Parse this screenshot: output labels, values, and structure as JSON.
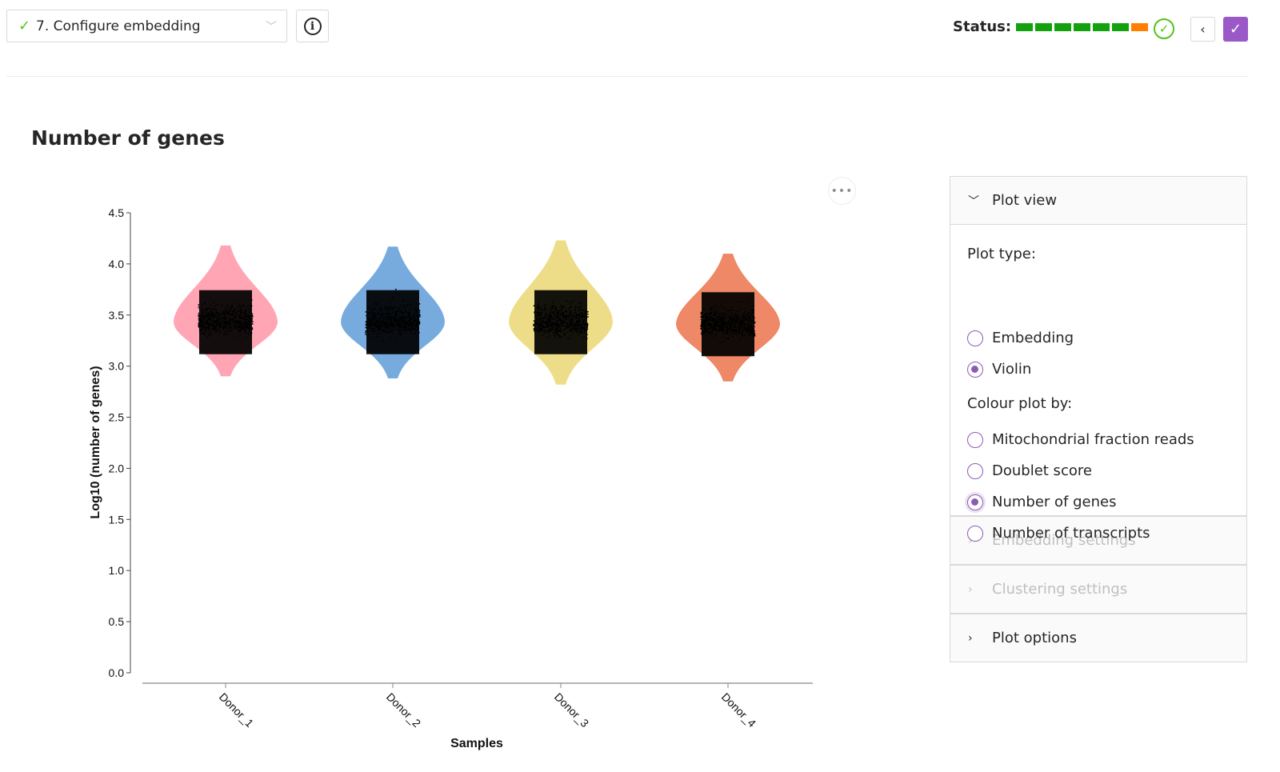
{
  "header": {
    "step_label": "7. Configure embedding",
    "status_label": "Status:",
    "status_segments": [
      "#13a10e",
      "#13a10e",
      "#13a10e",
      "#13a10e",
      "#13a10e",
      "#13a10e",
      "#ff7f00"
    ]
  },
  "page": {
    "title": "Number of genes"
  },
  "panel": {
    "plot_view": {
      "title": "Plot view",
      "plot_type_label": "Plot type:",
      "plot_types": [
        {
          "label": "Embedding",
          "checked": false
        },
        {
          "label": "Violin",
          "checked": true
        }
      ],
      "colour_by_label": "Colour plot by:",
      "colour_options": [
        {
          "label": "Mitochondrial fraction reads",
          "checked": false
        },
        {
          "label": "Doublet score",
          "checked": false
        },
        {
          "label": "Number of genes",
          "checked": true
        },
        {
          "label": "Number of transcripts",
          "checked": false
        }
      ]
    },
    "embedding_settings": "Embedding settings",
    "clustering_settings": "Clustering settings",
    "plot_options": "Plot options"
  },
  "chart_data": {
    "type": "violin",
    "title": "",
    "xlabel": "Samples",
    "ylabel": "Log10 (number of genes)",
    "ylim": [
      0,
      4.5
    ],
    "yticks": [
      "0.0",
      "0.5",
      "1.0",
      "1.5",
      "2.0",
      "2.5",
      "3.0",
      "3.5",
      "4.0",
      "4.5"
    ],
    "categories": [
      "Donor_1",
      "Donor_2",
      "Donor_3",
      "Donor_4"
    ],
    "violins": [
      {
        "name": "Donor_1",
        "color": "#ffa5b4",
        "min": 2.9,
        "max": 4.18,
        "median": 3.43
      },
      {
        "name": "Donor_2",
        "color": "#77aadd",
        "min": 2.88,
        "max": 4.17,
        "median": 3.43
      },
      {
        "name": "Donor_3",
        "color": "#eedd88",
        "min": 2.82,
        "max": 4.23,
        "median": 3.43
      },
      {
        "name": "Donor_4",
        "color": "#ee8866",
        "min": 2.85,
        "max": 4.1,
        "median": 3.41
      }
    ]
  }
}
